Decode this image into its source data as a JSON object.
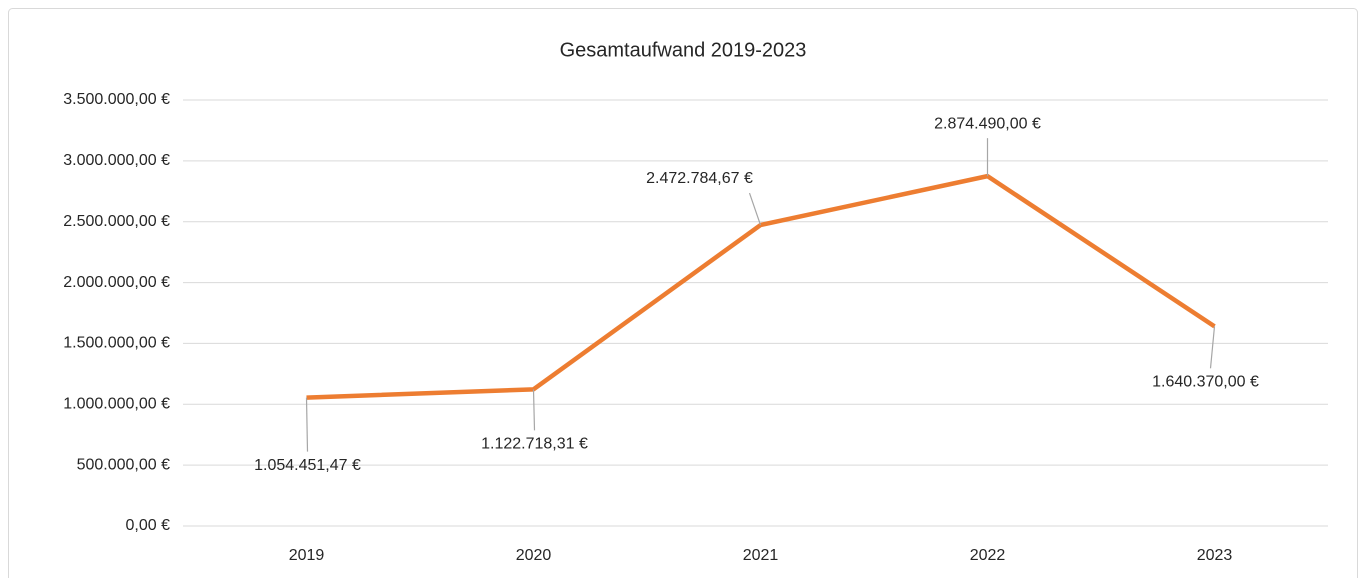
{
  "chart_data": {
    "type": "line",
    "title": "Gesamtaufwand 2019-2023",
    "categories": [
      "2019",
      "2020",
      "2021",
      "2022",
      "2023"
    ],
    "series": [
      {
        "color": "#ed7d31",
        "values": [
          1054451.47,
          1122718.31,
          2472784.67,
          2874490.0,
          1640370.0
        ],
        "value_labels": [
          "1.054.451,47 €",
          "1.122.718,31 €",
          "2.472.784,67 €",
          "2.874.490,00 €",
          "1.640.370,00 €"
        ]
      }
    ],
    "ylim": [
      0,
      3500000
    ],
    "yticks": [
      {
        "value": 0,
        "label": "0,00 €"
      },
      {
        "value": 500000,
        "label": "500.000,00 €"
      },
      {
        "value": 1000000,
        "label": "1.000.000,00 €"
      },
      {
        "value": 1500000,
        "label": "1.500.000,00 €"
      },
      {
        "value": 2000000,
        "label": "2.000.000,00 €"
      },
      {
        "value": 2500000,
        "label": "2.500.000,00 €"
      },
      {
        "value": 3000000,
        "label": "3.000.000,00 €"
      },
      {
        "value": 3500000,
        "label": "3.500.000,00 €"
      }
    ],
    "grid": true
  }
}
